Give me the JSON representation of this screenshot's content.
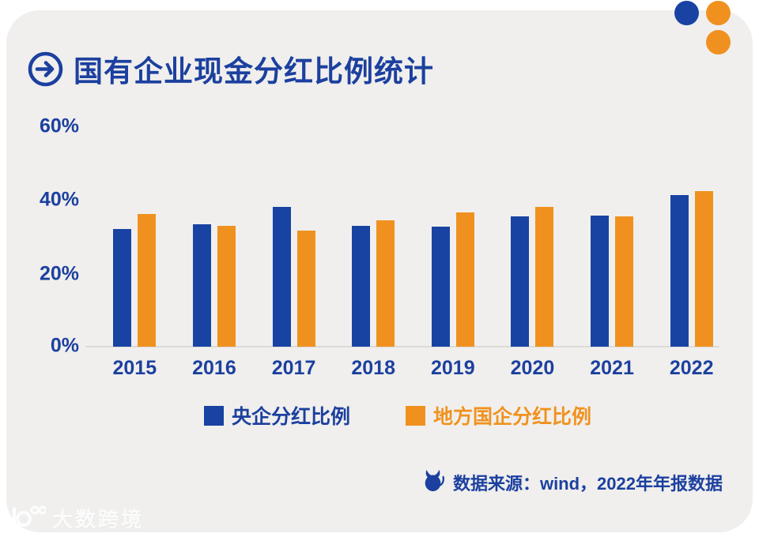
{
  "page": {
    "background": "#ffffff",
    "card_background": "#f0efed"
  },
  "decor": {
    "dots": [
      "#1843a3",
      "#f0911f",
      "#f0911f"
    ]
  },
  "header": {
    "title": "国有企业现金分红比例统计",
    "accent_color": "#1c409f"
  },
  "chart_data": {
    "type": "bar",
    "title": "国有企业现金分红比例统计",
    "categories": [
      "2015",
      "2016",
      "2017",
      "2018",
      "2019",
      "2020",
      "2021",
      "2022"
    ],
    "series": [
      {
        "name": "央企分红比例",
        "color": "#1843a3",
        "label_color": "#1c409f",
        "values": [
          32.2,
          33.5,
          38.3,
          33.1,
          32.8,
          35.6,
          35.9,
          41.4
        ]
      },
      {
        "name": "地方国企分红比例",
        "color": "#f0911f",
        "label_color": "#f0921f",
        "values": [
          36.3,
          33.0,
          31.8,
          34.5,
          36.8,
          38.3,
          35.6,
          42.6
        ]
      }
    ],
    "unit": "%",
    "ylim": [
      0,
      60
    ],
    "yticks": [
      "0%",
      "20%",
      "40%",
      "60%"
    ],
    "grid": false,
    "legend_position": "bottom"
  },
  "footer": {
    "source_label": "数据来源：wind，2022年年报数据"
  },
  "watermark": {
    "brand": "大数跨境"
  }
}
